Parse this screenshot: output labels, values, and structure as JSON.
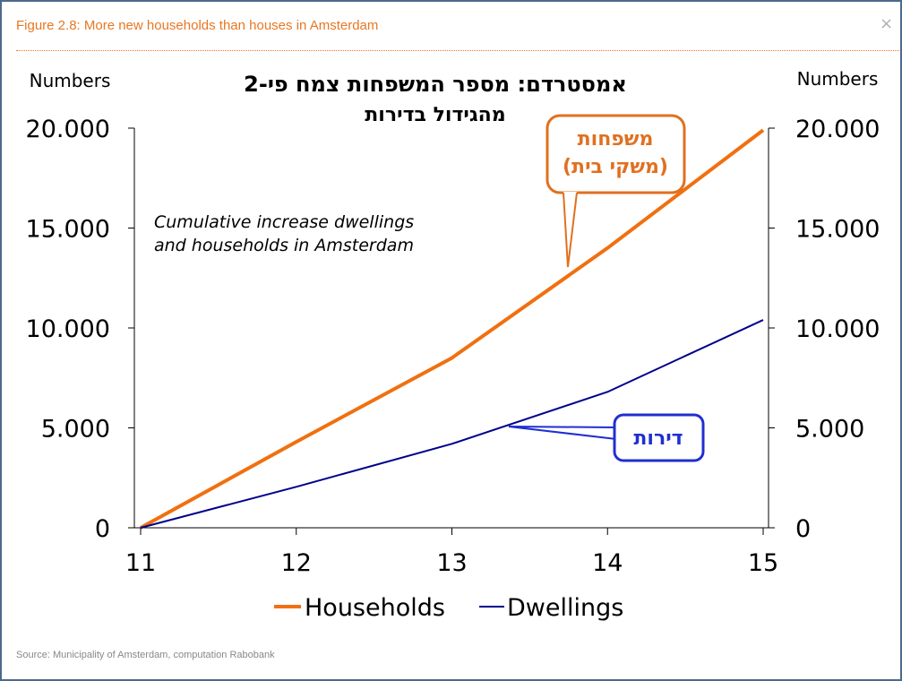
{
  "header": {
    "figure_title": "Figure 2.8: More new households than houses in Amsterdam",
    "close_symbol": "×"
  },
  "footer": {
    "source": "Source: Municipality of Amsterdam, computation Rabobank"
  },
  "colors": {
    "households": "#f07010",
    "dwellings": "#00008b",
    "accent": "#e87722",
    "callout_orange": "#e07020",
    "callout_blue": "#1f2fd0"
  },
  "chart_data": {
    "type": "line",
    "title_line1": "אמסטרדם: מספר המשפחות צמח פי-2",
    "title_line2": "מהגידול בדירות",
    "subtitle_line1": "Cumulative increase dwellings",
    "subtitle_line2": "and households in Amsterdam",
    "ylabel_left": "Numbers",
    "ylabel_right": "Numbers",
    "ylim": [
      0,
      20000
    ],
    "yticks": [
      0,
      5000,
      10000,
      15000,
      20000
    ],
    "ytick_labels": [
      "0",
      "5.000",
      "10.000",
      "15.000",
      "20.000"
    ],
    "categories": [
      "11",
      "12",
      "13",
      "14",
      "15"
    ],
    "series": [
      {
        "name": "Households",
        "values": [
          0,
          4300,
          8500,
          14000,
          19900
        ]
      },
      {
        "name": "Dwellings",
        "values": [
          0,
          2050,
          4200,
          6800,
          10400
        ]
      }
    ],
    "callouts": {
      "households_line1": "משפחות",
      "households_line2": "(משקי בית)",
      "dwellings": "דירות"
    },
    "legend_position": "bottom",
    "grid": false
  }
}
